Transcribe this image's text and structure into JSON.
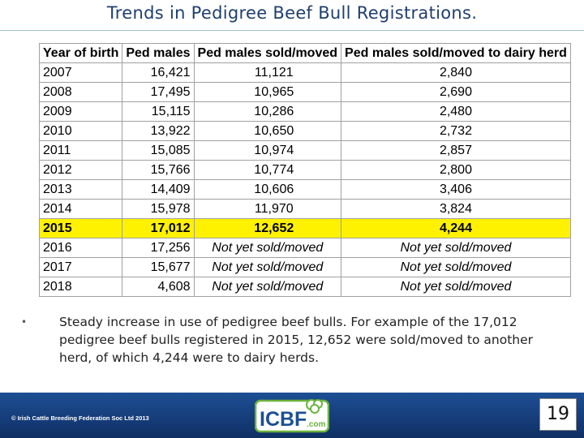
{
  "slide": {
    "title": "Trends in Pedigree Beef Bull Registrations.",
    "page_number": "19"
  },
  "table": {
    "headers": [
      "Year of birth",
      "Ped males",
      "Ped males sold/moved",
      "Ped males sold/moved to dairy herd"
    ],
    "rows": [
      [
        "2007",
        "16,421",
        "11,121",
        "2,840"
      ],
      [
        "2008",
        "17,495",
        "10,965",
        "2,690"
      ],
      [
        "2009",
        "15,115",
        "10,286",
        "2,480"
      ],
      [
        "2010",
        "13,922",
        "10,650",
        "2,732"
      ],
      [
        "2011",
        "15,085",
        "10,974",
        "2,857"
      ],
      [
        "2012",
        "15,766",
        "10,774",
        "2,800"
      ],
      [
        "2013",
        "14,409",
        "10,606",
        "3,406"
      ],
      [
        "2014",
        "15,978",
        "11,970",
        "3,824"
      ],
      [
        "2015",
        "17,012",
        "12,652",
        "4,244"
      ],
      [
        "2016",
        "17,256",
        "Not yet sold/moved",
        "Not yet sold/moved"
      ],
      [
        "2017",
        "15,677",
        "Not yet sold/moved",
        "Not yet sold/moved"
      ],
      [
        "2018",
        "4,608",
        "Not yet sold/moved",
        "Not yet sold/moved"
      ]
    ],
    "highlight_row_index": 8,
    "highlight_color": "#fff200"
  },
  "bullet": {
    "text": "Steady increase in use of pedigree beef bulls. For example of the 17,012 pedigree beef bulls registered in 2015, 12,652 were sold/moved to another herd, of which 4,244 were to dairy herds."
  },
  "footer": {
    "copyright": "© Irish Cattle Breeding Federation Soc Ltd 2013",
    "logo_text": "ICBF",
    "logo_suffix": ".com",
    "background_color": "#1d4f94",
    "logo_green": "#6cb33f"
  }
}
